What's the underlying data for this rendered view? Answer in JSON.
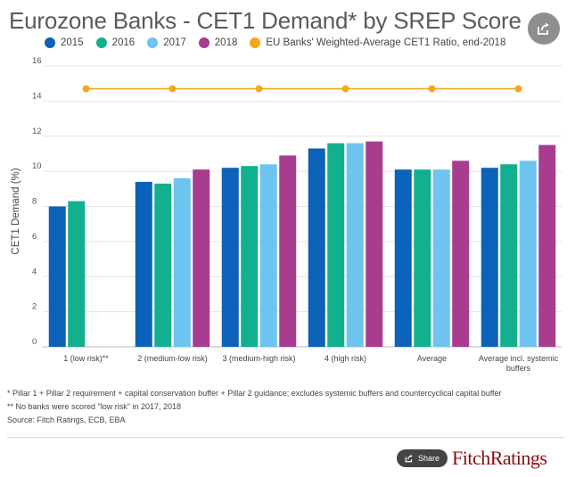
{
  "title": "Eurozone Banks - CET1 Demand* by SREP Score",
  "legend": {
    "s2015": "2015",
    "s2016": "2016",
    "s2017": "2017",
    "s2018": "2018",
    "avg": "EU Banks' Weighted-Average CET1 Ratio, end-2018"
  },
  "colors": {
    "s2015": "#0b62b8",
    "s2016": "#13b08f",
    "s2017": "#6ec4ef",
    "s2018": "#a83c8f",
    "avg": "#f4a71d"
  },
  "chart_data": {
    "type": "bar",
    "title": "Eurozone Banks - CET1 Demand* by SREP Score",
    "xlabel": "",
    "ylabel": "CET1 Demand (%)",
    "ylim": [
      0,
      16
    ],
    "yticks": [
      0,
      2,
      4,
      6,
      8,
      10,
      12,
      14,
      16
    ],
    "grid": true,
    "categories": [
      "1 (low risk)**",
      "2 (medium-low risk)",
      "3 (medium-high risk)",
      "4 (high risk)",
      "Average",
      "Average incl. systemic buffers"
    ],
    "series": [
      {
        "name": "2015",
        "values": [
          8.0,
          9.4,
          10.2,
          11.3,
          10.1,
          10.2
        ]
      },
      {
        "name": "2016",
        "values": [
          8.3,
          9.3,
          10.3,
          11.6,
          10.1,
          10.4
        ]
      },
      {
        "name": "2017",
        "values": [
          null,
          9.6,
          10.4,
          11.6,
          10.1,
          10.6
        ]
      },
      {
        "name": "2018",
        "values": [
          null,
          10.1,
          10.9,
          11.7,
          10.6,
          11.5
        ]
      }
    ],
    "line_series": {
      "name": "EU Banks' Weighted-Average CET1 Ratio, end-2018",
      "values": [
        14.7,
        14.7,
        14.7,
        14.7,
        14.7,
        14.7
      ]
    }
  },
  "notes": {
    "note1": "* Pillar 1 + Pillar 2 requirement + capital conservation buffer + Pillar 2 guidance; excludes systemic buffers and countercyclical capital buffer",
    "note2": "** No banks were scored \"low risk\" in 2017, 2018",
    "source": "Source: Fitch Ratings, ECB, EBA"
  },
  "share_label": "Share",
  "brand": "FitchRatings"
}
